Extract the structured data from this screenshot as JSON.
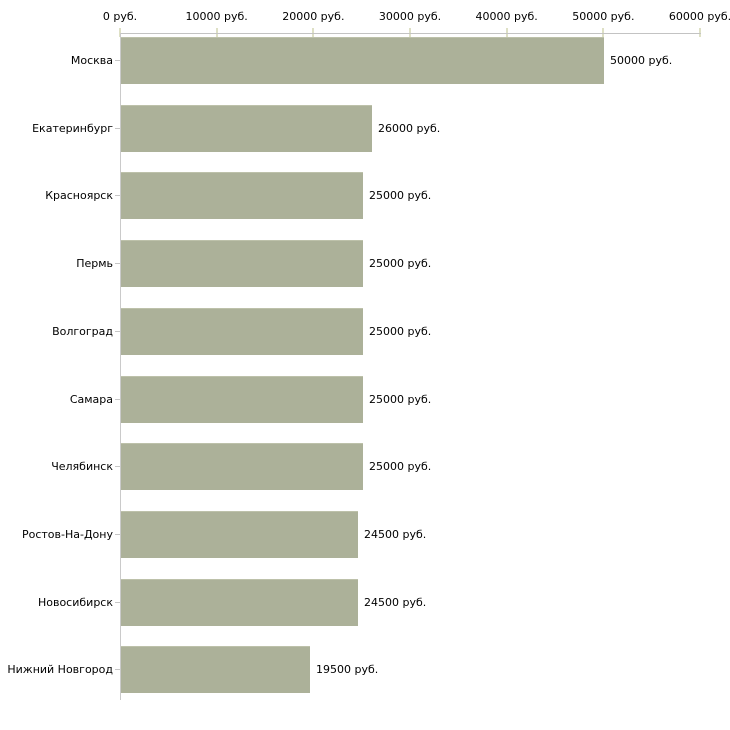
{
  "chart_data": {
    "type": "bar",
    "orientation": "horizontal",
    "title": "",
    "xlabel": "",
    "ylabel": "",
    "unit": "руб.",
    "categories": [
      "Москва",
      "Екатеринбург",
      "Красноярск",
      "Пермь",
      "Волгоград",
      "Самара",
      "Челябинск",
      "Ростов-На-Дону",
      "Новосибирск",
      "Нижний Новгород"
    ],
    "values": [
      50000,
      26000,
      25000,
      25000,
      25000,
      25000,
      25000,
      24500,
      24500,
      19500
    ],
    "value_labels": [
      "50000 руб.",
      "26000 руб.",
      "25000 руб.",
      "25000 руб.",
      "25000 руб.",
      "25000 руб.",
      "25000 руб.",
      "24500 руб.",
      "24500 руб.",
      "19500 руб."
    ],
    "x_axis": {
      "position": "top",
      "range": [
        0,
        60000
      ],
      "ticks": [
        0,
        10000,
        20000,
        30000,
        40000,
        50000,
        60000
      ],
      "tick_labels": [
        "0 руб.",
        "10000 руб.",
        "20000 руб.",
        "30000 руб.",
        "40000 руб.",
        "50000 руб.",
        "60000 руб."
      ]
    },
    "grid": false,
    "legend": false,
    "colors": {
      "bar_fill": "#acb199",
      "bar_top_edge": "#bdc1aa",
      "axis_line": "#c3c3c3",
      "x_tick_mark": "#dee0c5",
      "y_tick_mark": "#c6c6c6",
      "text": "#000000",
      "background": "#ffffff"
    }
  }
}
